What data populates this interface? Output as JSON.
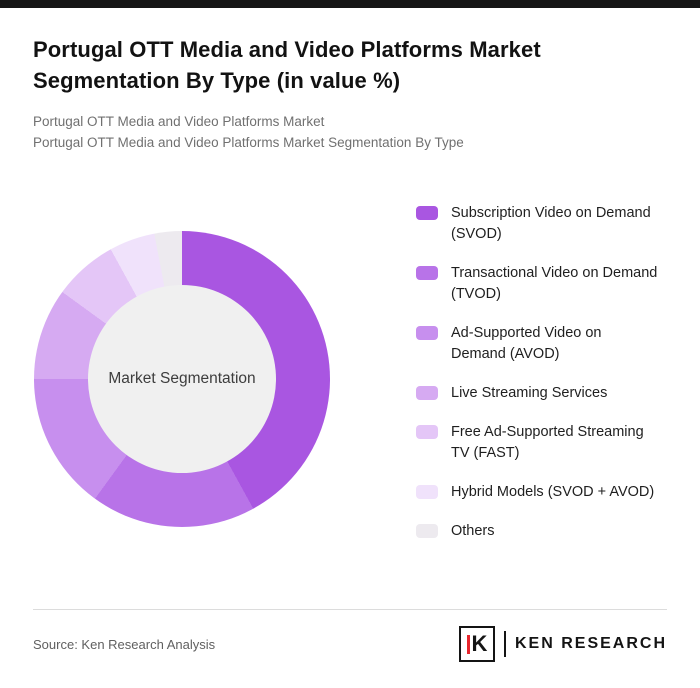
{
  "page": {
    "title": "Portugal OTT Media and Video Platforms Market Segmentation By Type (in value %)",
    "subtitle1": "Portugal OTT Media and Video Platforms Market",
    "subtitle2": "Portugal OTT Media and Video Platforms Market Segmentation By Type"
  },
  "chart_data": {
    "type": "pie",
    "donut": true,
    "title": "Portugal OTT Media and Video Platforms Market Segmentation By Type (in value %)",
    "center_label": "Market Segmentation",
    "legend_position": "right",
    "categories": [
      "Subscription Video on Demand (SVOD)",
      "Transactional Video on Demand (TVOD)",
      "Ad-Supported Video on Demand (AVOD)",
      "Live Streaming Services",
      "Free Ad-Supported Streaming TV (FAST)",
      "Hybrid Models (SVOD + AVOD)",
      "Others"
    ],
    "values": [
      42,
      18,
      15,
      10,
      7,
      5,
      3
    ],
    "values_note": "percent shares estimated from arc angles; no numeric labels shown in chart",
    "colors": [
      "#a956e1",
      "#b873e8",
      "#c78fee",
      "#d6aaf2",
      "#e4c6f7",
      "#f0e2fb",
      "#edeaef"
    ],
    "center_fill": "#f0f0f0"
  },
  "footer": {
    "source": "Source: Ken Research Analysis",
    "logo_letter": "K",
    "logo_text": "KEN RESEARCH",
    "logo_accent_color": "#e8262d"
  }
}
